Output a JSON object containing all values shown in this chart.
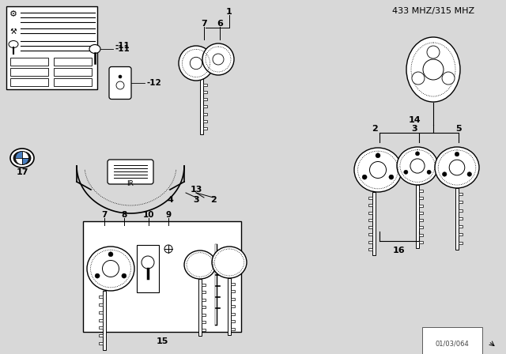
{
  "title": "433 MHZ/315 MHZ",
  "bg_color": "#d8d8d8",
  "line_color": "#000000",
  "white": "#ffffff",
  "watermark": "01/03/064"
}
